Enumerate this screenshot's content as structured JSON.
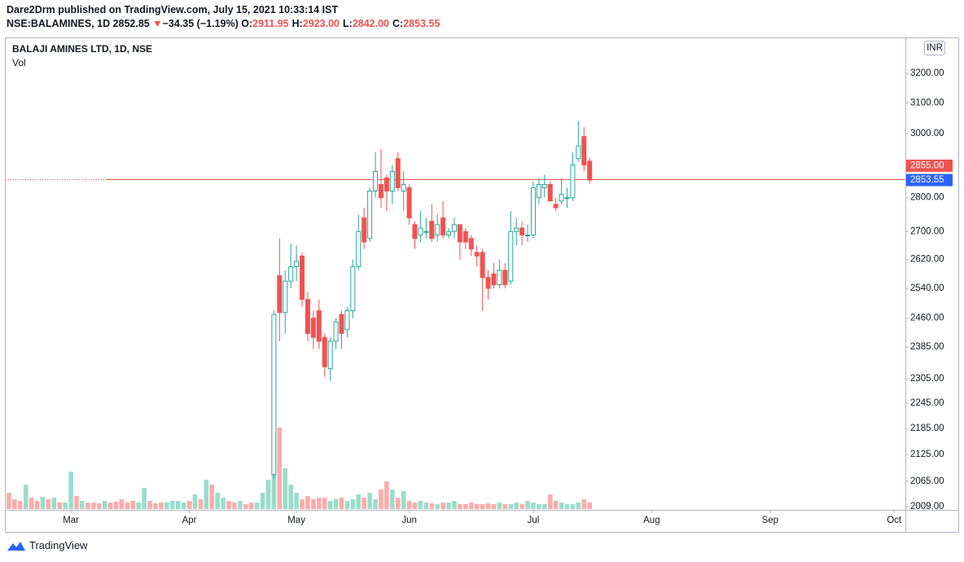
{
  "header": {
    "publisher": "Dare2Drm published on TradingView.com, July 15, 2021 10:33:14 IST",
    "symbol": "NSE:BALAMINES, 1D",
    "last": "2852.85",
    "arrow": "▼",
    "change": "−34.35 (−1.19%)",
    "ohlc": [
      {
        "label": "O:",
        "value": "2911.95"
      },
      {
        "label": "H:",
        "value": "2923.00"
      },
      {
        "label": "L:",
        "value": "2842.00"
      },
      {
        "label": "C:",
        "value": "2853.55"
      }
    ]
  },
  "footer": "TradingView",
  "chart_data": {
    "type": "candlestick",
    "title": "BALAJI AMINES LTD, 1D, NSE",
    "volume_label": "Vol",
    "currency": "INR",
    "log_scale": true,
    "ylim": [
      2004,
      3320
    ],
    "yticks": [
      {
        "value": 3200,
        "label": "3200.00"
      },
      {
        "value": 3100,
        "label": "3100.00"
      },
      {
        "value": 3000,
        "label": "3000.00"
      },
      {
        "value": 2800,
        "label": "2800.00"
      },
      {
        "value": 2700,
        "label": "2700.00"
      },
      {
        "value": 2620,
        "label": "2620.00"
      },
      {
        "value": 2540,
        "label": "2540.00"
      },
      {
        "value": 2460,
        "label": "2460.00"
      },
      {
        "value": 2385,
        "label": "2385.00"
      },
      {
        "value": 2305,
        "label": "2305.00"
      },
      {
        "value": 2245,
        "label": "2245.00"
      },
      {
        "value": 2185,
        "label": "2185.00"
      },
      {
        "value": 2125,
        "label": "2125.00"
      },
      {
        "value": 2065,
        "label": "2065.00"
      },
      {
        "value": 2009,
        "label": "2009.00"
      }
    ],
    "xlim": [
      0,
      160
    ],
    "xticks": [
      {
        "value": 12,
        "label": "Mar"
      },
      {
        "value": 33,
        "label": "Apr"
      },
      {
        "value": 52,
        "label": "May"
      },
      {
        "value": 72,
        "label": "Jun"
      },
      {
        "value": 94,
        "label": "Jul"
      },
      {
        "value": 115,
        "label": "Aug"
      },
      {
        "value": 136,
        "label": "Sep"
      },
      {
        "value": 158,
        "label": "Oct"
      }
    ],
    "up_color": "#26a69a",
    "down_color": "#ef5350",
    "open": [
      null,
      null,
      null,
      null,
      null,
      null,
      null,
      null,
      null,
      null,
      null,
      null,
      null,
      null,
      null,
      null,
      null,
      null,
      null,
      null,
      null,
      null,
      null,
      null,
      null,
      null,
      null,
      null,
      null,
      null,
      null,
      null,
      null,
      null,
      null,
      null,
      null,
      null,
      null,
      null,
      null,
      null,
      null,
      null,
      null,
      null,
      null,
      null,
      2080,
      2575,
      2475,
      2560,
      2600,
      2630,
      2510,
      2460,
      2480,
      2410,
      2330,
      2400,
      2470,
      2430,
      2480,
      2600,
      2740,
      2680,
      2820,
      2840,
      2860,
      2820,
      2920,
      2820,
      2830,
      2720,
      2690,
      2700,
      2730,
      2690,
      2740,
      2690,
      2700,
      2720,
      2700,
      2680,
      2640,
      2640,
      2570,
      2580,
      2550,
      2590,
      2560,
      2700,
      2710,
      2690,
      2690,
      2800,
      2830,
      2840,
      2780,
      2790,
      2800,
      2800,
      2920,
      2990,
      2911.95
    ],
    "high": [
      null,
      null,
      null,
      null,
      null,
      null,
      null,
      null,
      null,
      null,
      null,
      null,
      null,
      null,
      null,
      null,
      null,
      null,
      null,
      null,
      null,
      null,
      null,
      null,
      null,
      null,
      null,
      null,
      null,
      null,
      null,
      null,
      null,
      null,
      null,
      null,
      null,
      null,
      null,
      null,
      null,
      null,
      null,
      null,
      null,
      null,
      null,
      null,
      2480,
      2680,
      2590,
      2665,
      2660,
      2640,
      2530,
      2480,
      2510,
      2420,
      2410,
      2460,
      2480,
      2490,
      2620,
      2750,
      2770,
      2830,
      2940,
      2950,
      2870,
      2900,
      2940,
      2880,
      2840,
      2730,
      2760,
      2740,
      2780,
      2750,
      2790,
      2710,
      2740,
      2720,
      2710,
      2690,
      2660,
      2650,
      2590,
      2610,
      2620,
      2610,
      2760,
      2740,
      2730,
      2720,
      2850,
      2860,
      2870,
      2850,
      2800,
      2860,
      2830,
      2940,
      3040,
      3020,
      2923
    ],
    "low": [
      null,
      null,
      null,
      null,
      null,
      null,
      null,
      null,
      null,
      null,
      null,
      null,
      null,
      null,
      null,
      null,
      null,
      null,
      null,
      null,
      null,
      null,
      null,
      null,
      null,
      null,
      null,
      null,
      null,
      null,
      null,
      null,
      null,
      null,
      null,
      null,
      null,
      null,
      null,
      null,
      null,
      null,
      null,
      null,
      null,
      null,
      null,
      null,
      2070,
      2400,
      2420,
      2540,
      2560,
      2490,
      2400,
      2380,
      2380,
      2310,
      2300,
      2380,
      2380,
      2410,
      2460,
      2590,
      2650,
      2670,
      2800,
      2770,
      2760,
      2780,
      2820,
      2760,
      2720,
      2650,
      2670,
      2680,
      2670,
      2670,
      2680,
      2680,
      2680,
      2620,
      2650,
      2630,
      2600,
      2480,
      2510,
      2540,
      2540,
      2540,
      2550,
      2660,
      2660,
      2670,
      2680,
      2780,
      2800,
      2790,
      2760,
      2780,
      2770,
      2790,
      2910,
      2880,
      2842
    ],
    "close": [
      null,
      null,
      null,
      null,
      null,
      null,
      null,
      null,
      null,
      null,
      null,
      null,
      null,
      null,
      null,
      null,
      null,
      null,
      null,
      null,
      null,
      null,
      null,
      null,
      null,
      null,
      null,
      null,
      null,
      null,
      null,
      null,
      null,
      null,
      null,
      null,
      null,
      null,
      null,
      null,
      null,
      null,
      null,
      null,
      null,
      null,
      null,
      null,
      2470,
      2475,
      2560,
      2600,
      2615,
      2510,
      2420,
      2410,
      2400,
      2335,
      2400,
      2450,
      2420,
      2480,
      2600,
      2700,
      2670,
      2820,
      2880,
      2800,
      2820,
      2880,
      2830,
      2840,
      2740,
      2680,
      2710,
      2700,
      2680,
      2720,
      2690,
      2700,
      2720,
      2670,
      2670,
      2650,
      2630,
      2570,
      2540,
      2550,
      2590,
      2550,
      2700,
      2710,
      2690,
      2690,
      2830,
      2840,
      2840,
      2790,
      2770,
      2810,
      2800,
      2900,
      2960,
      2900,
      2853.55
    ],
    "volume_lim": [
      0,
      577
    ],
    "volume": [
      70,
      20,
      12,
      10,
      30,
      14,
      10,
      15,
      12,
      14,
      8,
      8,
      46,
      16,
      10,
      8,
      8,
      7,
      10,
      8,
      9,
      12,
      8,
      10,
      8,
      26,
      10,
      7,
      8,
      8,
      10,
      10,
      8,
      10,
      18,
      12,
      36,
      30,
      20,
      14,
      10,
      8,
      10,
      6,
      8,
      8,
      20,
      36,
      145,
      100,
      50,
      30,
      20,
      12,
      16,
      12,
      14,
      14,
      10,
      12,
      14,
      10,
      12,
      18,
      14,
      20,
      12,
      24,
      34,
      24,
      14,
      22,
      10,
      8,
      10,
      8,
      7,
      6,
      8,
      8,
      10,
      6,
      6,
      8,
      6,
      6,
      7,
      6,
      8,
      6,
      6,
      8,
      6,
      10,
      8,
      6,
      6,
      18,
      10,
      8,
      6,
      6,
      8,
      12,
      8
    ],
    "volume_colors": [
      "#faa",
      "#faa",
      "#faa",
      "#faa",
      "#9dc",
      "#faa",
      "#faa",
      "#9dc",
      "#faa",
      "#9dc",
      "#faa",
      "#9dc",
      "#9dc",
      "#faa",
      "#9dc",
      "#faa",
      "#faa",
      "#faa",
      "#9dc",
      "#faa",
      "#faa",
      "#faa",
      "#faa",
      "#faa",
      "#9dc",
      "#9dc",
      "#faa",
      "#faa",
      "#faa",
      "#9dc",
      "#9dc",
      "#9dc",
      "#9dc",
      "#faa",
      "#9dc",
      "#faa",
      "#9dc",
      "#faa",
      "#9dc",
      "#9dc",
      "#faa",
      "#faa",
      "#9dc",
      "#faa",
      "#faa",
      "#9dc",
      "#9dc",
      "#9dc",
      "#9dc",
      "#faa",
      "#9dc",
      "#9dc",
      "#9dc",
      "#faa",
      "#faa",
      "#faa",
      "#faa",
      "#faa",
      "#9dc",
      "#9dc",
      "#faa",
      "#9dc",
      "#9dc",
      "#9dc",
      "#faa",
      "#9dc",
      "#9dc",
      "#faa",
      "#faa",
      "#9dc",
      "#faa",
      "#9dc",
      "#faa",
      "#faa",
      "#9dc",
      "#9dc",
      "#faa",
      "#9dc",
      "#faa",
      "#9dc",
      "#9dc",
      "#faa",
      "#faa",
      "#faa",
      "#faa",
      "#faa",
      "#faa",
      "#faa",
      "#9dc",
      "#faa",
      "#9dc",
      "#9dc",
      "#faa",
      "#9dc",
      "#9dc",
      "#9dc",
      "#9dc",
      "#faa",
      "#faa",
      "#9dc",
      "#9dc",
      "#9dc",
      "#9dc",
      "#faa",
      "#faa"
    ],
    "price_lines": [
      {
        "value": 2855,
        "label": "2855.00",
        "color": "#ef5350"
      },
      {
        "value": 2853.55,
        "label": "2853.55",
        "color": "#2962ff"
      }
    ]
  }
}
